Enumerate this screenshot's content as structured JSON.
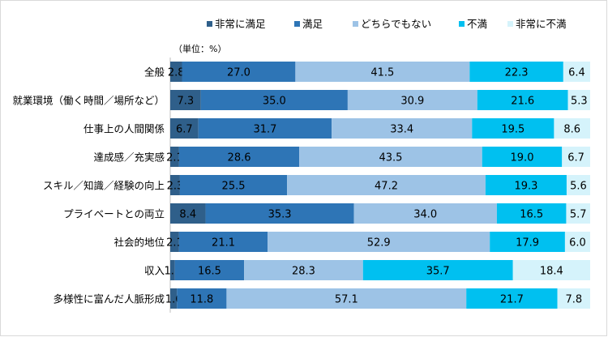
{
  "chart_data": {
    "type": "bar",
    "stacked": true,
    "orientation": "horizontal",
    "percent_stacked": true,
    "unit_label": "（単位：%）",
    "legend_position": "top",
    "categories": [
      "全般",
      "就業環境（働く時間／場所など）",
      "仕事上の人間関係",
      "達成感／充実感",
      "スキル／知識／経験の向上",
      "プライベートとの両立",
      "社会的地位",
      "収入",
      "多様性に富んだ人脈形成"
    ],
    "series": [
      {
        "name": "非常に満足",
        "color": "#2F5F8A",
        "values": [
          2.8,
          7.3,
          6.7,
          2.1,
          2.3,
          8.4,
          2.1,
          1.1,
          1.6
        ]
      },
      {
        "name": "満足",
        "color": "#2E75B6",
        "values": [
          27.0,
          35.0,
          31.7,
          28.6,
          25.5,
          35.3,
          21.1,
          16.5,
          11.8
        ]
      },
      {
        "name": "どちらでもない",
        "color": "#9DC3E6",
        "values": [
          41.5,
          30.9,
          33.4,
          43.5,
          47.2,
          34.0,
          52.9,
          28.3,
          57.1
        ]
      },
      {
        "name": "不満",
        "color": "#00C0F0",
        "values": [
          22.3,
          21.6,
          19.5,
          19.0,
          19.3,
          16.5,
          17.9,
          35.7,
          21.7
        ]
      },
      {
        "name": "非常に不満",
        "color": "#D5F3FB",
        "values": [
          6.4,
          5.3,
          8.6,
          6.7,
          5.6,
          5.7,
          6.0,
          18.4,
          7.8
        ]
      }
    ],
    "value_labels": [
      [
        "2.8",
        "27.0",
        "41.5",
        "22.3",
        "6.4"
      ],
      [
        "7.3",
        "35.0",
        "30.9",
        "21.6",
        "5.3"
      ],
      [
        "6.7",
        "31.7",
        "33.4",
        "19.5",
        "8.6"
      ],
      [
        "2.1",
        "28.6",
        "43.5",
        "19.0",
        "6.7"
      ],
      [
        "2.3",
        "25.5",
        "47.2",
        "19.3",
        "5.6"
      ],
      [
        "8.4",
        "35.3",
        "34.0",
        "16.5",
        "5.7"
      ],
      [
        "2.1",
        "21.1",
        "52.9",
        "17.9",
        "6.0"
      ],
      [
        "1.1",
        "16.5",
        "28.3",
        "35.7",
        "18.4"
      ],
      [
        "1.6",
        "11.8",
        "57.1",
        "21.7",
        "7.8"
      ]
    ]
  }
}
